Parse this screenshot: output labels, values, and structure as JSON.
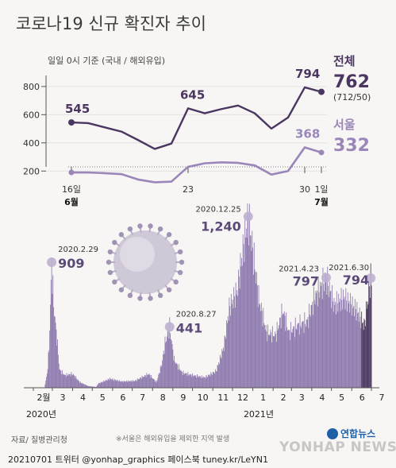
{
  "title": "코로나19 신규 확진자 추이",
  "subtitle": "일일 0시 기준 (국내 / 해외유입)",
  "colors": {
    "total": "#4a3660",
    "seoul": "#9a86b8",
    "bar_dark": "#4a3660",
    "bar": "#8e7aae",
    "bar_light": "#bdb0d0",
    "axis": "#555555",
    "grid": "#dddddd"
  },
  "chart_data": [
    {
      "type": "line",
      "title": "코로나19 신규 확진자 추이",
      "subtitle": "일일 0시 기준 (국내 / 해외유입)",
      "x_start_date": "2021-06-16",
      "x_tick_labels": [
        {
          "day": 0,
          "label": "16일",
          "sub": "6월"
        },
        {
          "day": 7,
          "label": "23"
        },
        {
          "day": 14,
          "label": "30"
        },
        {
          "day": 15,
          "label": "1일",
          "sub": "7월"
        }
      ],
      "ylim": [
        100,
        850
      ],
      "yticks": [
        200,
        400,
        600,
        800
      ],
      "series": [
        {
          "name": "전체",
          "total_value": "762",
          "value_breakdown": "(712/50)",
          "values": [
            545,
            540,
            510,
            480,
            420,
            357,
            395,
            645,
            610,
            640,
            665,
            610,
            501,
            580,
            794,
            762
          ],
          "point_labels": [
            {
              "day": 0,
              "text": "545"
            },
            {
              "day": 7,
              "text": "645"
            },
            {
              "day": 14,
              "text": "794"
            }
          ]
        },
        {
          "name": "서울",
          "total_value": "332",
          "values": [
            190,
            190,
            185,
            178,
            140,
            120,
            125,
            230,
            255,
            262,
            258,
            240,
            175,
            200,
            368,
            332
          ],
          "point_labels": [
            {
              "day": 14,
              "text": "368"
            }
          ]
        }
      ]
    },
    {
      "type": "bar",
      "x_start_date": "2020-02-01",
      "x_end_date": "2021-07-01",
      "month_labels": [
        "2월",
        "3",
        "4",
        "5",
        "6",
        "7",
        "8",
        "9",
        "10",
        "11",
        "12",
        "1",
        "2",
        "3",
        "4",
        "5",
        "6",
        "7"
      ],
      "year_labels": [
        "2020년",
        "2021년"
      ],
      "ylim": [
        0,
        1300
      ],
      "anchors": [
        [
          "2020-02-01",
          0
        ],
        [
          "2020-02-18",
          1
        ],
        [
          "2020-02-22",
          100
        ],
        [
          "2020-02-25",
          280
        ],
        [
          "2020-02-29",
          909
        ],
        [
          "2020-03-03",
          600
        ],
        [
          "2020-03-08",
          360
        ],
        [
          "2020-03-12",
          130
        ],
        [
          "2020-03-20",
          90
        ],
        [
          "2020-04-01",
          100
        ],
        [
          "2020-04-12",
          40
        ],
        [
          "2020-04-25",
          12
        ],
        [
          "2020-05-07",
          6
        ],
        [
          "2020-05-10",
          30
        ],
        [
          "2020-05-28",
          65
        ],
        [
          "2020-06-15",
          45
        ],
        [
          "2020-07-05",
          50
        ],
        [
          "2020-07-26",
          100
        ],
        [
          "2020-08-07",
          40
        ],
        [
          "2020-08-15",
          170
        ],
        [
          "2020-08-20",
          320
        ],
        [
          "2020-08-27",
          441
        ],
        [
          "2020-09-03",
          200
        ],
        [
          "2020-09-15",
          110
        ],
        [
          "2020-10-01",
          90
        ],
        [
          "2020-10-20",
          75
        ],
        [
          "2020-11-06",
          120
        ],
        [
          "2020-11-18",
          300
        ],
        [
          "2020-11-26",
          580
        ],
        [
          "2020-12-08",
          700
        ],
        [
          "2020-12-17",
          1000
        ],
        [
          "2020-12-25",
          1240
        ],
        [
          "2021-01-01",
          1000
        ],
        [
          "2021-01-10",
          650
        ],
        [
          "2021-01-22",
          400
        ],
        [
          "2021-02-05",
          380
        ],
        [
          "2021-02-16",
          560
        ],
        [
          "2021-02-25",
          400
        ],
        [
          "2021-03-10",
          450
        ],
        [
          "2021-03-25",
          480
        ],
        [
          "2021-04-05",
          650
        ],
        [
          "2021-04-23",
          797
        ],
        [
          "2021-05-05",
          600
        ],
        [
          "2021-05-20",
          650
        ],
        [
          "2021-06-01",
          600
        ],
        [
          "2021-06-10",
          550
        ],
        [
          "2021-06-20",
          450
        ],
        [
          "2021-06-30",
          794
        ],
        [
          "2021-07-01",
          762
        ]
      ],
      "annotations": [
        {
          "date": "2020-02-29",
          "label": "2020.2.29",
          "value": "909"
        },
        {
          "date": "2020-08-27",
          "label": "2020.8.27",
          "value": "441"
        },
        {
          "date": "2020-12-25",
          "label": "2020.12.25",
          "value": "1,240"
        },
        {
          "date": "2021-04-23",
          "label": "2021.4.23",
          "value": "797"
        },
        {
          "date": "2021-06-30",
          "label": "2021.6.30",
          "value": "794"
        }
      ]
    }
  ],
  "source": "자료/ 질병관리청",
  "note": "※서울은 해외유입을 제외한 지역 발생",
  "footer": "20210701 트위터 @yonhap_graphics  페이스북 tuney.kr/LeYN1",
  "logo": {
    "text": "연합뉴스",
    "watermark": "YONHAP NEWS"
  }
}
